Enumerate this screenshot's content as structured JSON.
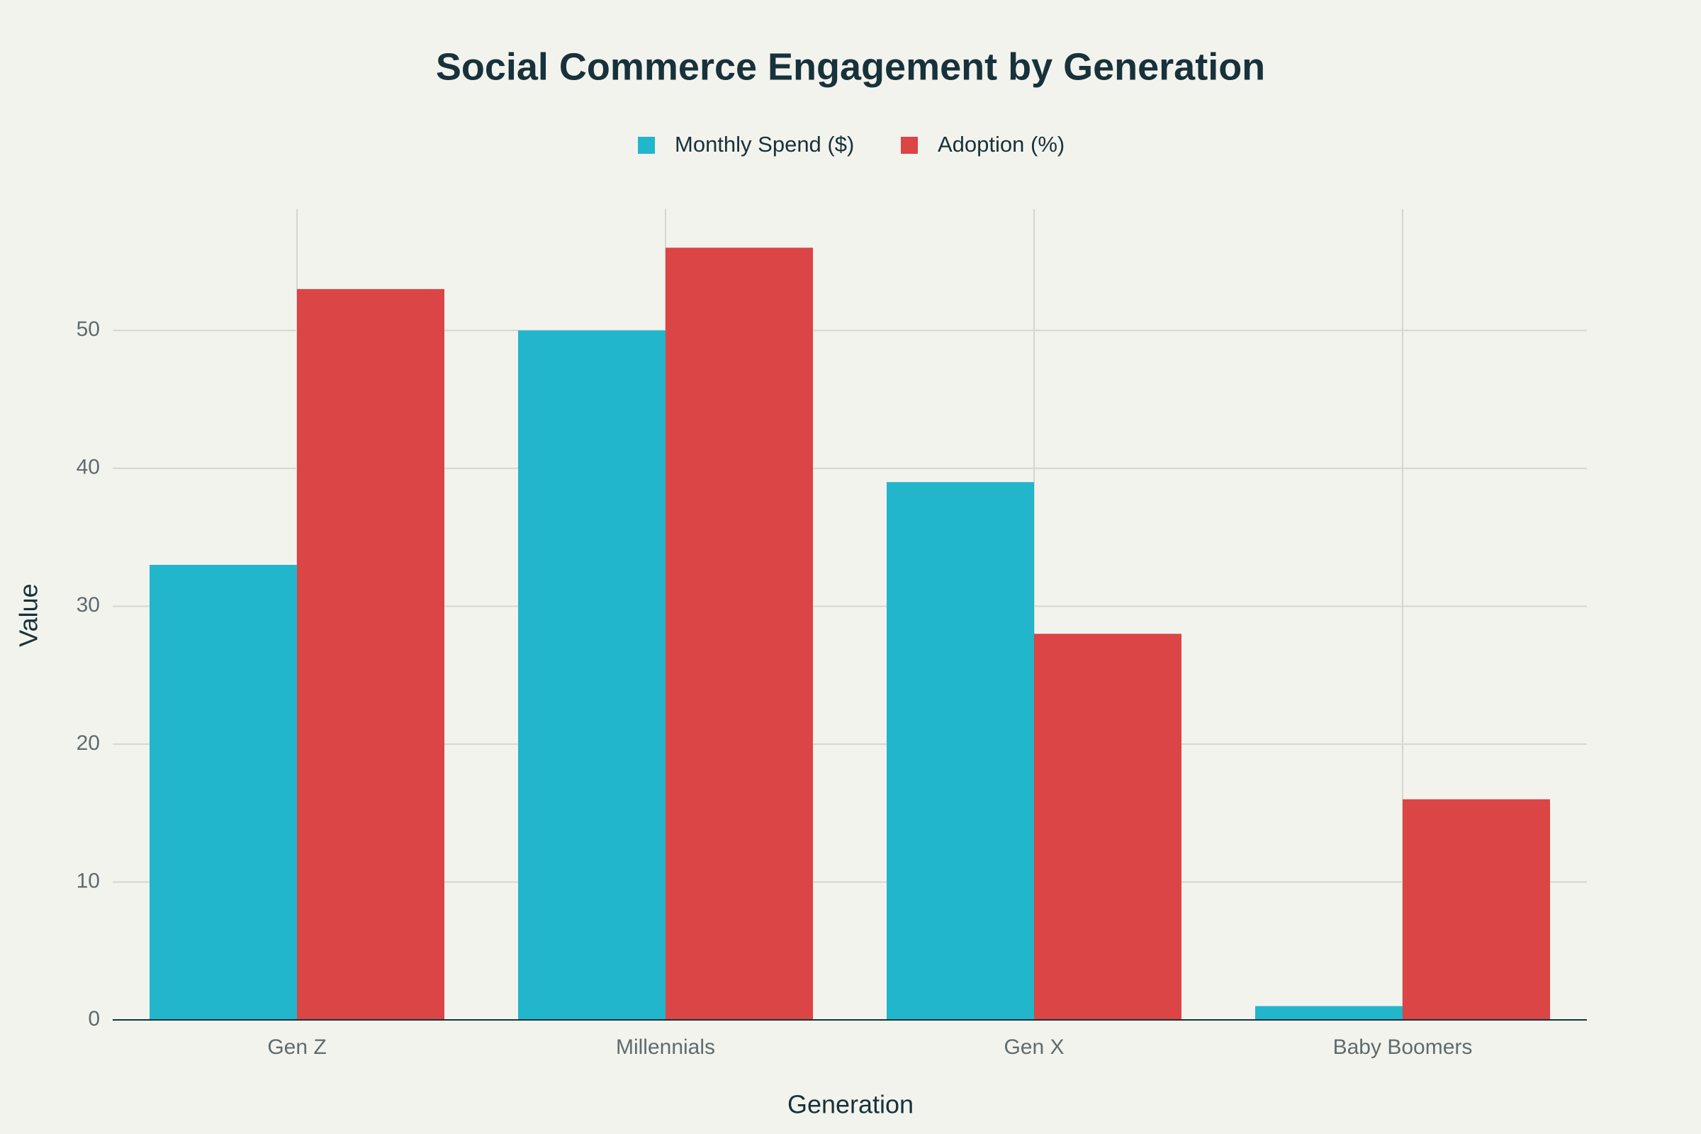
{
  "chart_data": {
    "type": "bar",
    "title": "Social Commerce Engagement by Generation",
    "x_label": "Generation",
    "y_label": "Value",
    "categories": [
      "Gen Z",
      "Millennials",
      "Gen X",
      "Baby Boomers"
    ],
    "series": [
      {
        "name": "Monthly Spend ($)",
        "color": "#21b6cb",
        "values": [
          33,
          50,
          39,
          1
        ]
      },
      {
        "name": "Adoption (%)",
        "color": "#db4546",
        "values": [
          53,
          56,
          28,
          16
        ]
      }
    ],
    "ylim": [
      0,
      58.8
    ],
    "yticks": [
      0,
      10,
      20,
      30,
      40,
      50
    ],
    "grid": true,
    "legend": "top"
  }
}
